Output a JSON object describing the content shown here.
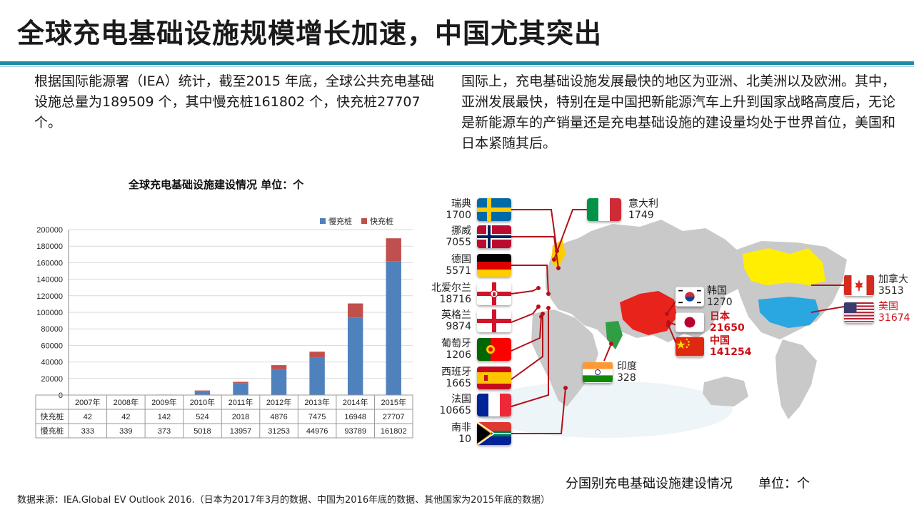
{
  "slide": {
    "title": "全球充电基础设施规模增长加速，中国尤其突出",
    "left_paragraph": "根据国际能源署（IEA）统计，截至2015 年底，全球公共充电基础设施总量为189509 个，其中慢充桩161802 个，快充桩27707 个。",
    "right_paragraph": "国际上，充电基础设施发展最快的地区为亚洲、北美洲以及欧洲。其中，亚洲发展最快，特别在是中国把新能源汽车上升到国家战略高度后，无论是新能源车的产销量还是充电基础设施的建设量均处于世界首位，美国和日本紧随其后。",
    "map_caption": "分国别充电基础设施建设情况　　单位：个",
    "source": "数据来源：IEA.Global EV Outlook 2016.（日本为2017年3月的数据、中国为2016年底的数据、其他国家为2015年底的数据）"
  },
  "chart_data": {
    "type": "bar",
    "title": "全球充电基础设施建设情况  单位：个",
    "stacked": true,
    "categories": [
      "2007年",
      "2008年",
      "2009年",
      "2010年",
      "2011年",
      "2012年",
      "2013年",
      "2014年",
      "2015年"
    ],
    "series": [
      {
        "name": "慢充桩",
        "color": "#4f81bd",
        "values": [
          333,
          339,
          373,
          5018,
          13957,
          31253,
          44976,
          93789,
          161802
        ]
      },
      {
        "name": "快充桩",
        "color": "#c0504d",
        "values": [
          42,
          42,
          142,
          524,
          2018,
          4876,
          7475,
          16948,
          27707
        ]
      }
    ],
    "table_rows": [
      {
        "label": "快充桩",
        "values": [
          "42",
          "42",
          "142",
          "524",
          "2018",
          "4876",
          "7475",
          "16948",
          "27707"
        ]
      },
      {
        "label": "慢充桩",
        "values": [
          "333",
          "339",
          "373",
          "5018",
          "13957",
          "31253",
          "44976",
          "93789",
          "161802"
        ]
      }
    ],
    "yticks": [
      0,
      20000,
      40000,
      60000,
      80000,
      100000,
      120000,
      140000,
      160000,
      180000,
      200000
    ],
    "ylim": [
      0,
      200000
    ],
    "grid": true,
    "legend": "top-right"
  },
  "countries": {
    "sweden": {
      "name": "瑞典",
      "value": "1700"
    },
    "norway": {
      "name": "挪威",
      "value": "7055"
    },
    "germany": {
      "name": "德国",
      "value": "5571"
    },
    "northern_ireland": {
      "name": "北爱尔兰",
      "value": "18716"
    },
    "england": {
      "name": "英格兰",
      "value": "9874"
    },
    "portugal": {
      "name": "葡萄牙",
      "value": "1206"
    },
    "spain": {
      "name": "西班牙",
      "value": "1665"
    },
    "france": {
      "name": "法国",
      "value": "10665"
    },
    "south_africa": {
      "name": "南非",
      "value": "10"
    },
    "italy": {
      "name": "意大利",
      "value": "1749"
    },
    "korea": {
      "name": "韩国",
      "value": "1270"
    },
    "japan": {
      "name": "日本",
      "value": "21650"
    },
    "china": {
      "name": "中国",
      "value": "141254"
    },
    "india": {
      "name": "印度",
      "value": "328"
    },
    "canada": {
      "name": "加拿大",
      "value": "3513"
    },
    "usa": {
      "name": "美国",
      "value": "31674"
    }
  },
  "colors": {
    "accent_rule": "#1f8aa6",
    "highlight_red": "#c8121a",
    "china_map": "#e8231c",
    "usa_map": "#2aa6e0",
    "canada_map": "#ffee00",
    "map_land": "#c9c9c9"
  }
}
